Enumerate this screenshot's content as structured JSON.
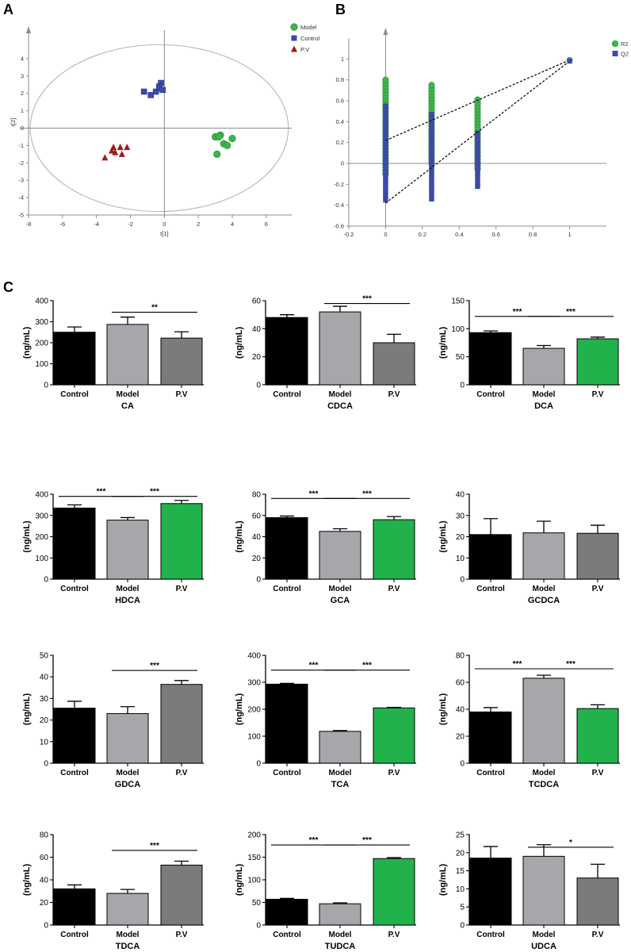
{
  "panel_labels": {
    "a": "A",
    "b": "B",
    "c": "C"
  },
  "colors": {
    "model": "#3cb54a",
    "control": "#3d4aa8",
    "pv": "#9e1b1b",
    "bar_control": "#000000",
    "bar_model": "#a7a7ab",
    "bar_pv_grey": "#7b7b7b",
    "bar_pv_green": "#22b24c"
  },
  "chart_data": [
    {
      "id": "A",
      "type": "scatter",
      "xlabel": "t[1]",
      "ylabel": "t[2]",
      "xlim": [
        -8,
        7.5
      ],
      "ylim": [
        -5,
        5
      ],
      "xticks": [
        -8,
        -6,
        -4,
        -2,
        0,
        2,
        4,
        6
      ],
      "yticks": [
        -5,
        -4,
        -3,
        -2,
        -1,
        0,
        1,
        2,
        3,
        4
      ],
      "ellipse": {
        "cx": -0.3,
        "cy": 0,
        "rx": 7.6,
        "ry": 4.8
      },
      "legend": [
        "Model",
        "Control",
        "P.V"
      ],
      "series": [
        {
          "name": "Model",
          "marker": "circle",
          "color": "#3cb54a",
          "points": [
            [
              3.0,
              -0.5
            ],
            [
              3.3,
              -0.4
            ],
            [
              3.5,
              -0.9
            ],
            [
              3.7,
              -1.0
            ],
            [
              4.0,
              -0.6
            ],
            [
              3.1,
              -1.5
            ],
            [
              3.2,
              -0.5
            ]
          ]
        },
        {
          "name": "Control",
          "marker": "square",
          "color": "#3d4aa8",
          "points": [
            [
              -1.2,
              2.1
            ],
            [
              -0.8,
              1.9
            ],
            [
              -0.5,
              2.1
            ],
            [
              -0.3,
              2.3
            ],
            [
              -0.2,
              2.6
            ],
            [
              -0.3,
              2.4
            ],
            [
              -0.1,
              2.2
            ]
          ]
        },
        {
          "name": "P.V",
          "marker": "triangle",
          "color": "#9e1b1b",
          "points": [
            [
              -3.5,
              -1.7
            ],
            [
              -3.0,
              -1.1
            ],
            [
              -2.6,
              -1.1
            ],
            [
              -2.2,
              -1.1
            ],
            [
              -2.9,
              -1.4
            ],
            [
              -2.5,
              -1.5
            ],
            [
              -3.1,
              -1.3
            ]
          ]
        }
      ]
    },
    {
      "id": "B",
      "type": "scatter",
      "xlim": [
        -0.2,
        1.2
      ],
      "ylim": [
        -0.6,
        1.2
      ],
      "xticks": [
        -0.2,
        0,
        0.2,
        0.4,
        0.6,
        0.8,
        1
      ],
      "xtick_labels": [
        "-0.2",
        "0",
        "0.2",
        "0.4",
        "0.6",
        "0.8",
        "1"
      ],
      "yticks": [
        -0.6,
        -0.4,
        -0.2,
        0,
        0.2,
        0.4,
        0.6,
        0.8,
        1
      ],
      "ytick_labels": [
        "-0.6",
        "-0.4",
        "-0.2",
        "0",
        "0.2",
        "0.4",
        "0.6",
        "0.8",
        "1"
      ],
      "legend": [
        "R2",
        "Q2"
      ],
      "series": [
        {
          "name": "R2",
          "marker": "circle",
          "color": "#3cb54a",
          "columns": [
            {
              "x": 0,
              "min": -0.1,
              "max": 0.8
            },
            {
              "x": 0.25,
              "min": 0.0,
              "max": 0.77
            },
            {
              "x": 0.5,
              "min": -0.05,
              "max": 0.63
            }
          ],
          "final": [
            1,
            0.99
          ]
        },
        {
          "name": "Q2",
          "marker": "square",
          "color": "#3d4aa8",
          "columns": [
            {
              "x": 0,
              "min": -0.35,
              "max": 0.55
            },
            {
              "x": 0.25,
              "min": -0.34,
              "max": 0.48
            },
            {
              "x": 0.5,
              "min": -0.22,
              "max": 0.3
            }
          ],
          "final": [
            1,
            0.98
          ]
        }
      ],
      "regression_lines": [
        [
          [
            0,
            0.22
          ],
          [
            1,
            0.99
          ]
        ],
        [
          [
            0,
            -0.38
          ],
          [
            1,
            0.98
          ]
        ]
      ]
    },
    {
      "id": "CA",
      "type": "bar",
      "xlabel": "CA",
      "ylabel": "(ng/mL)",
      "categories": [
        "Control",
        "Model",
        "P.V"
      ],
      "values": [
        250,
        287,
        222
      ],
      "errors": [
        25,
        35,
        30
      ],
      "ylim": [
        0,
        400
      ],
      "yticks": [
        0,
        100,
        200,
        300,
        400
      ],
      "pv_color": "grey",
      "significance": [
        {
          "from": 1,
          "to": 2,
          "label": "**",
          "y": 345
        }
      ]
    },
    {
      "id": "CDCA",
      "type": "bar",
      "xlabel": "CDCA",
      "ylabel": "(ng/mL)",
      "categories": [
        "Control",
        "Model",
        "P.V"
      ],
      "values": [
        48,
        52,
        30
      ],
      "errors": [
        2,
        4,
        6
      ],
      "ylim": [
        0,
        60
      ],
      "yticks": [
        0,
        20,
        40,
        60
      ],
      "pv_color": "grey",
      "significance": [
        {
          "from": 1,
          "to": 2,
          "label": "***",
          "y": 58
        }
      ]
    },
    {
      "id": "DCA",
      "type": "bar",
      "xlabel": "DCA",
      "ylabel": "(ng/mL)",
      "categories": [
        "Control",
        "Model",
        "P.V"
      ],
      "values": [
        93,
        65,
        82
      ],
      "errors": [
        3,
        5,
        3
      ],
      "ylim": [
        0,
        150
      ],
      "yticks": [
        0,
        50,
        100,
        150
      ],
      "pv_color": "green",
      "significance": [
        {
          "from": 0,
          "to": 1,
          "label": "***",
          "y": 122
        },
        {
          "from": 1,
          "to": 2,
          "label": "***",
          "y": 122
        }
      ]
    },
    {
      "id": "HDCA",
      "type": "bar",
      "xlabel": "HDCA",
      "ylabel": "(ng/mL)",
      "categories": [
        "Control",
        "Model",
        "P.V"
      ],
      "values": [
        335,
        278,
        356
      ],
      "errors": [
        15,
        12,
        15
      ],
      "ylim": [
        0,
        400
      ],
      "yticks": [
        0,
        100,
        200,
        300,
        400
      ],
      "pv_color": "green",
      "significance": [
        {
          "from": 0,
          "to": 1,
          "label": "***",
          "y": 390
        },
        {
          "from": 1,
          "to": 2,
          "label": "***",
          "y": 390
        }
      ]
    },
    {
      "id": "GCA",
      "type": "bar",
      "xlabel": "GCA",
      "ylabel": "(ng/mL)",
      "categories": [
        "Control",
        "Model",
        "P.V"
      ],
      "values": [
        58,
        45,
        56
      ],
      "errors": [
        1.5,
        2.5,
        3
      ],
      "ylim": [
        0,
        80
      ],
      "yticks": [
        0,
        20,
        40,
        60,
        80
      ],
      "pv_color": "green",
      "significance": [
        {
          "from": 0,
          "to": 1,
          "label": "***",
          "y": 76
        },
        {
          "from": 1,
          "to": 2,
          "label": "***",
          "y": 76
        }
      ]
    },
    {
      "id": "GCDCA",
      "type": "bar",
      "xlabel": "GCDCA",
      "ylabel": "(ng/mL)",
      "categories": [
        "Control",
        "Model",
        "P.V"
      ],
      "values": [
        21,
        21.8,
        21.6
      ],
      "errors": [
        7.5,
        5.5,
        3.8
      ],
      "ylim": [
        0,
        40
      ],
      "yticks": [
        0,
        10,
        20,
        30,
        40
      ],
      "pv_color": "grey",
      "significance": []
    },
    {
      "id": "GDCA",
      "type": "bar",
      "xlabel": "GDCA",
      "ylabel": "(ng/mL)",
      "categories": [
        "Control",
        "Model",
        "P.V"
      ],
      "values": [
        25.5,
        23,
        36.5
      ],
      "errors": [
        3.2,
        3.2,
        1.8
      ],
      "ylim": [
        0,
        50
      ],
      "yticks": [
        0,
        10,
        20,
        30,
        40,
        50
      ],
      "pv_color": "grey",
      "significance": [
        {
          "from": 1,
          "to": 2,
          "label": "***",
          "y": 43
        }
      ]
    },
    {
      "id": "TCA",
      "type": "bar",
      "xlabel": "TCA",
      "ylabel": "(ng/mL)",
      "categories": [
        "Control",
        "Model",
        "P.V"
      ],
      "values": [
        293,
        118,
        205
      ],
      "errors": [
        3,
        3,
        2
      ],
      "ylim": [
        0,
        400
      ],
      "yticks": [
        0,
        100,
        200,
        300,
        400
      ],
      "pv_color": "green",
      "significance": [
        {
          "from": 0,
          "to": 1,
          "label": "***",
          "y": 345
        },
        {
          "from": 1,
          "to": 2,
          "label": "***",
          "y": 345
        }
      ]
    },
    {
      "id": "TCDCA",
      "type": "bar",
      "xlabel": "TCDCA",
      "ylabel": "(ng/mL)",
      "categories": [
        "Control",
        "Model",
        "P.V"
      ],
      "values": [
        38,
        63,
        40.5
      ],
      "errors": [
        3.2,
        2.2,
        2.8
      ],
      "ylim": [
        0,
        80
      ],
      "yticks": [
        0,
        20,
        40,
        60,
        80
      ],
      "pv_color": "green",
      "significance": [
        {
          "from": 0,
          "to": 1,
          "label": "***",
          "y": 70
        },
        {
          "from": 1,
          "to": 2,
          "label": "***",
          "y": 70
        }
      ]
    },
    {
      "id": "TDCA",
      "type": "bar",
      "xlabel": "TDCA",
      "ylabel": "(ng/mL)",
      "categories": [
        "Control",
        "Model",
        "P.V"
      ],
      "values": [
        32,
        28,
        53
      ],
      "errors": [
        3.5,
        3.5,
        3.5
      ],
      "ylim": [
        0,
        80
      ],
      "yticks": [
        0,
        20,
        40,
        60,
        80
      ],
      "pv_color": "grey",
      "significance": [
        {
          "from": 1,
          "to": 2,
          "label": "***",
          "y": 66
        }
      ]
    },
    {
      "id": "TUDCA",
      "type": "bar",
      "xlabel": "TUDCA",
      "ylabel": "(ng/mL)",
      "categories": [
        "Control",
        "Model",
        "P.V"
      ],
      "values": [
        57,
        47,
        147
      ],
      "errors": [
        2,
        2,
        2
      ],
      "ylim": [
        0,
        200
      ],
      "yticks": [
        0,
        50,
        100,
        150,
        200
      ],
      "pv_color": "green",
      "significance": [
        {
          "from": 0,
          "to": 1,
          "label": "***",
          "y": 177
        },
        {
          "from": 1,
          "to": 2,
          "label": "***",
          "y": 177
        }
      ]
    },
    {
      "id": "UDCA",
      "type": "bar",
      "xlabel": "UDCA",
      "ylabel": "(ng/mL)",
      "categories": [
        "Control",
        "Model",
        "P.V"
      ],
      "values": [
        18.5,
        19,
        13
      ],
      "errors": [
        3.2,
        3.2,
        3.8
      ],
      "ylim": [
        0,
        25
      ],
      "yticks": [
        0,
        5,
        10,
        15,
        20,
        25
      ],
      "pv_color": "grey",
      "significance": [
        {
          "from": 1,
          "to": 2,
          "label": "*",
          "y": 21.5
        }
      ]
    }
  ]
}
